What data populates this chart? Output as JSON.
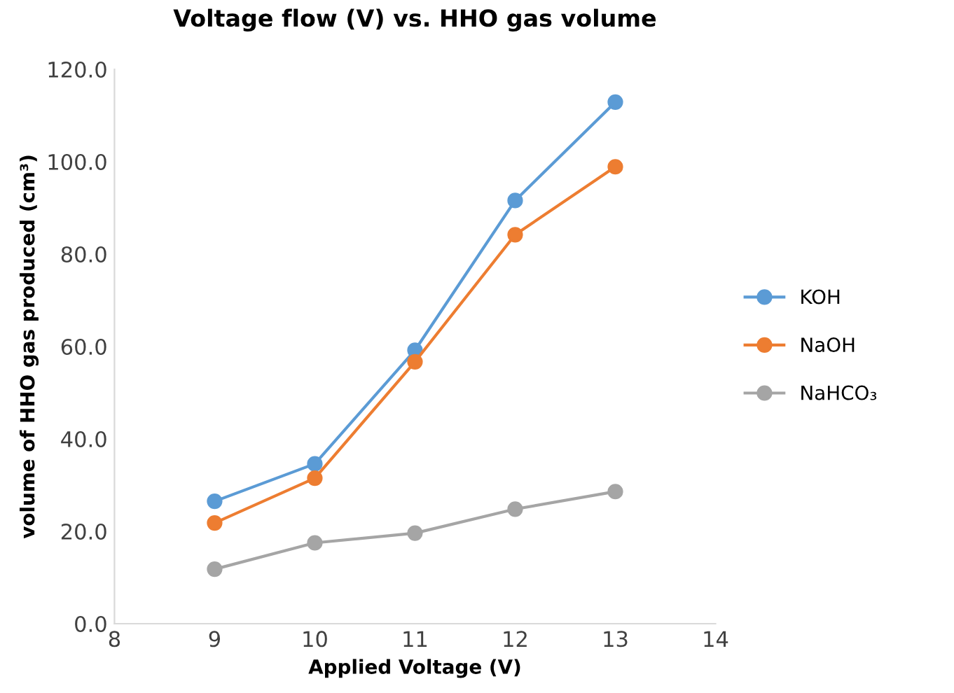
{
  "chart_data": {
    "type": "line",
    "title": "Voltage flow (V) vs. HHO gas volume",
    "xlabel": "Applied Voltage (V)",
    "ylabel": "volume of HHO gas produced (cm³)",
    "x": [
      9,
      10,
      11,
      12,
      13
    ],
    "series": [
      {
        "name": "KOH",
        "color": "#5b9bd5",
        "values": [
          26.5,
          34.6,
          59.2,
          91.6,
          112.9
        ]
      },
      {
        "name": "NaOH",
        "color": "#ed7d31",
        "values": [
          21.8,
          31.5,
          56.7,
          84.2,
          98.9
        ]
      },
      {
        "name": "NaHCO₃",
        "color": "#a5a5a5",
        "values": [
          11.8,
          17.5,
          19.6,
          24.8,
          28.6
        ]
      }
    ],
    "xlim": [
      8,
      14
    ],
    "xticks": [
      8,
      9,
      10,
      11,
      12,
      13,
      14
    ],
    "ylim": [
      0,
      120
    ],
    "yticks": [
      {
        "value": 0,
        "label": "0.0"
      },
      {
        "value": 20,
        "label": "20.0"
      },
      {
        "value": 40,
        "label": "40.0"
      },
      {
        "value": 60,
        "label": "60.0"
      },
      {
        "value": 80,
        "label": "80.0"
      },
      {
        "value": 100,
        "label": "100.0"
      },
      {
        "value": 120,
        "label": "120.0"
      }
    ],
    "grid": false,
    "legend": "right",
    "marker": "circle",
    "line_style": "solid"
  }
}
